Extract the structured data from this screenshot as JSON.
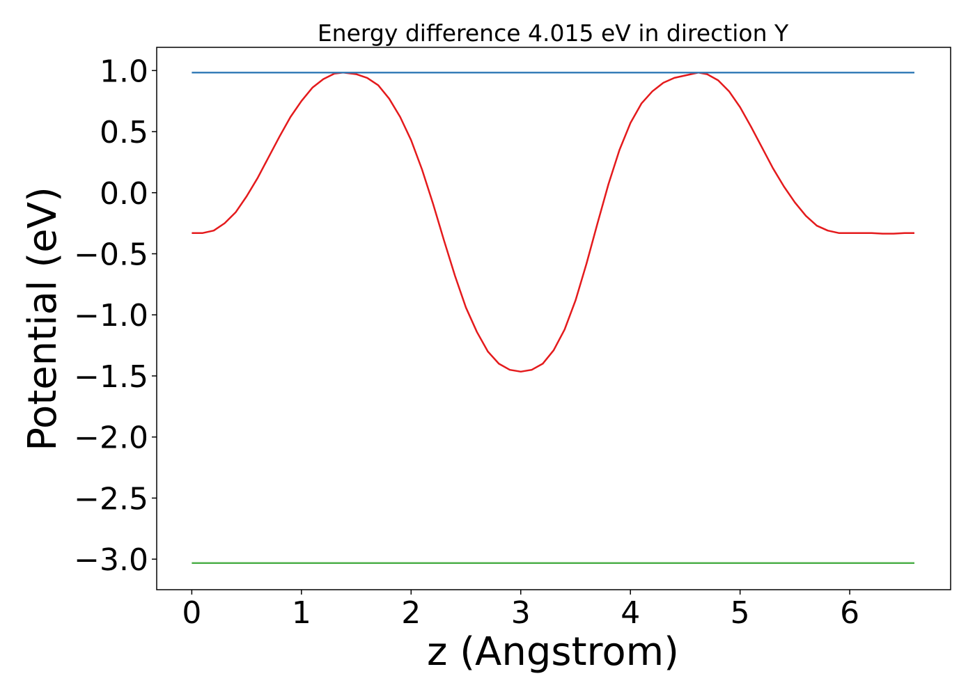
{
  "chart_data": {
    "type": "line",
    "title": "Energy difference 4.015 eV in direction Y",
    "xlabel": "z (Angstrom)",
    "ylabel": "Potential (eV)",
    "xlim": [
      -0.32,
      6.92
    ],
    "ylim": [
      -3.25,
      1.19
    ],
    "xticks": [
      0,
      1,
      2,
      3,
      4,
      5,
      6
    ],
    "xtick_labels": [
      "0",
      "1",
      "2",
      "3",
      "4",
      "5",
      "6"
    ],
    "yticks": [
      1.0,
      0.5,
      0.0,
      -0.5,
      -1.0,
      -1.5,
      -2.0,
      -2.5,
      -3.0
    ],
    "ytick_labels": [
      "1.0",
      "0.5",
      "0.0",
      "−0.5",
      "−1.0",
      "−1.5",
      "−2.0",
      "−2.5",
      "−3.0"
    ],
    "grid": false,
    "series": [
      {
        "color": "#e41a1c",
        "x": [
          0,
          0.1,
          0.2,
          0.3,
          0.4,
          0.5,
          0.6,
          0.7,
          0.8,
          0.9,
          1.0,
          1.1,
          1.2,
          1.3,
          1.38,
          1.5,
          1.6,
          1.7,
          1.8,
          1.9,
          2.0,
          2.1,
          2.2,
          2.3,
          2.4,
          2.5,
          2.6,
          2.7,
          2.8,
          2.9,
          3.0,
          3.1,
          3.2,
          3.3,
          3.4,
          3.5,
          3.6,
          3.7,
          3.8,
          3.9,
          4.0,
          4.1,
          4.2,
          4.3,
          4.4,
          4.5,
          4.62,
          4.7,
          4.8,
          4.9,
          5.0,
          5.1,
          5.2,
          5.3,
          5.4,
          5.5,
          5.6,
          5.7,
          5.8,
          5.9,
          6.0,
          6.1,
          6.2,
          6.3,
          6.4,
          6.5,
          6.59
        ],
        "y": [
          -0.33,
          -0.33,
          -0.31,
          -0.25,
          -0.16,
          -0.03,
          0.12,
          0.29,
          0.46,
          0.62,
          0.75,
          0.86,
          0.93,
          0.975,
          0.983,
          0.97,
          0.94,
          0.88,
          0.77,
          0.62,
          0.43,
          0.19,
          -0.09,
          -0.39,
          -0.68,
          -0.94,
          -1.14,
          -1.3,
          -1.4,
          -1.45,
          -1.465,
          -1.45,
          -1.4,
          -1.29,
          -1.12,
          -0.88,
          -0.58,
          -0.25,
          0.07,
          0.35,
          0.57,
          0.73,
          0.83,
          0.9,
          0.94,
          0.96,
          0.983,
          0.97,
          0.92,
          0.83,
          0.7,
          0.54,
          0.37,
          0.2,
          0.05,
          -0.08,
          -0.19,
          -0.27,
          -0.31,
          -0.33,
          -0.33,
          -0.33,
          -0.33,
          -0.335,
          -0.335,
          -0.33,
          -0.33
        ]
      },
      {
        "color": "#377eb8",
        "x": [
          0,
          6.59
        ],
        "y": [
          0.983,
          0.983
        ]
      },
      {
        "color": "#4daf4a",
        "x": [
          0,
          6.59
        ],
        "y": [
          -3.032,
          -3.032
        ]
      }
    ]
  }
}
